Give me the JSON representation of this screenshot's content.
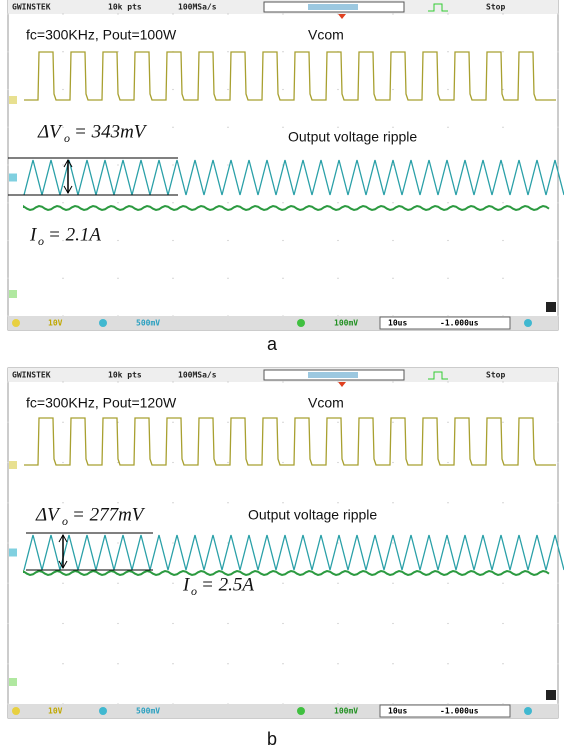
{
  "panels": [
    {
      "header": {
        "brand": "GWINSTEK",
        "points": "10k pts",
        "rate": "100MSa/s",
        "status": "Stop"
      },
      "annotations": {
        "condition": "fc=300KHz, Pout=100W",
        "channel": "Vcom",
        "ripple_label": "Output voltage ripple",
        "delta_symbol": "ΔV",
        "delta_sub": "o",
        "delta_value": "= 343mV",
        "current_symbol": "I",
        "current_sub": "o",
        "current_value": "= 2.1A"
      },
      "footer": {
        "ch1": "10V",
        "ch2": "500mV",
        "ch4": "100mV",
        "timebase": "10us",
        "offset": "-1.000us"
      },
      "caption": "a"
    },
    {
      "header": {
        "brand": "GWINSTEK",
        "points": "10k pts",
        "rate": "100MSa/s",
        "status": "Stop"
      },
      "annotations": {
        "condition": "fc=300KHz, Pout=120W",
        "channel": "Vcom",
        "ripple_label": "Output voltage ripple",
        "delta_symbol": "ΔV",
        "delta_sub": "o",
        "delta_value": "= 277mV",
        "current_symbol": "I",
        "current_sub": "o",
        "current_value": "= 2.5A"
      },
      "footer": {
        "ch1": "10V",
        "ch2": "500mV",
        "ch4": "100mV",
        "timebase": "10us",
        "offset": "-1.000us"
      },
      "caption": "b"
    }
  ]
}
